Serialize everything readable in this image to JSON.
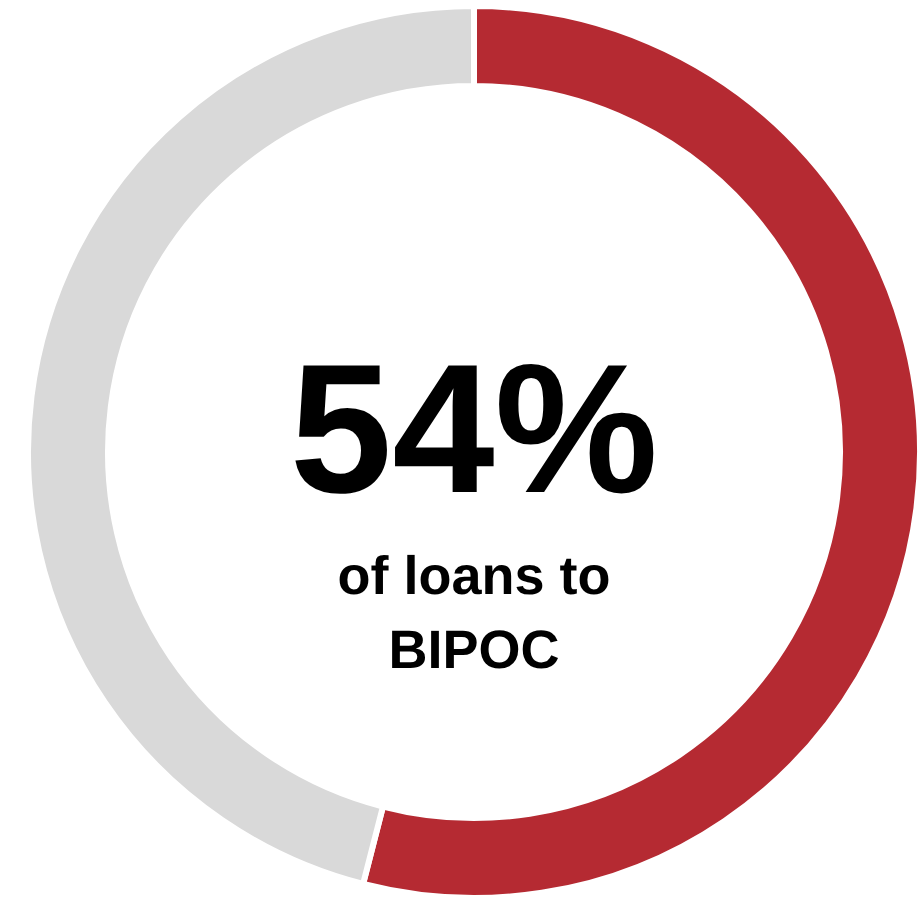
{
  "chart_data": {
    "type": "donut",
    "categories": [
      null,
      null
    ],
    "values": [
      54,
      46
    ],
    "colors": [
      "#b52a32",
      "#d9d9d9"
    ],
    "annotations": [
      "54%",
      "of loans to BIPOC"
    ]
  }
}
